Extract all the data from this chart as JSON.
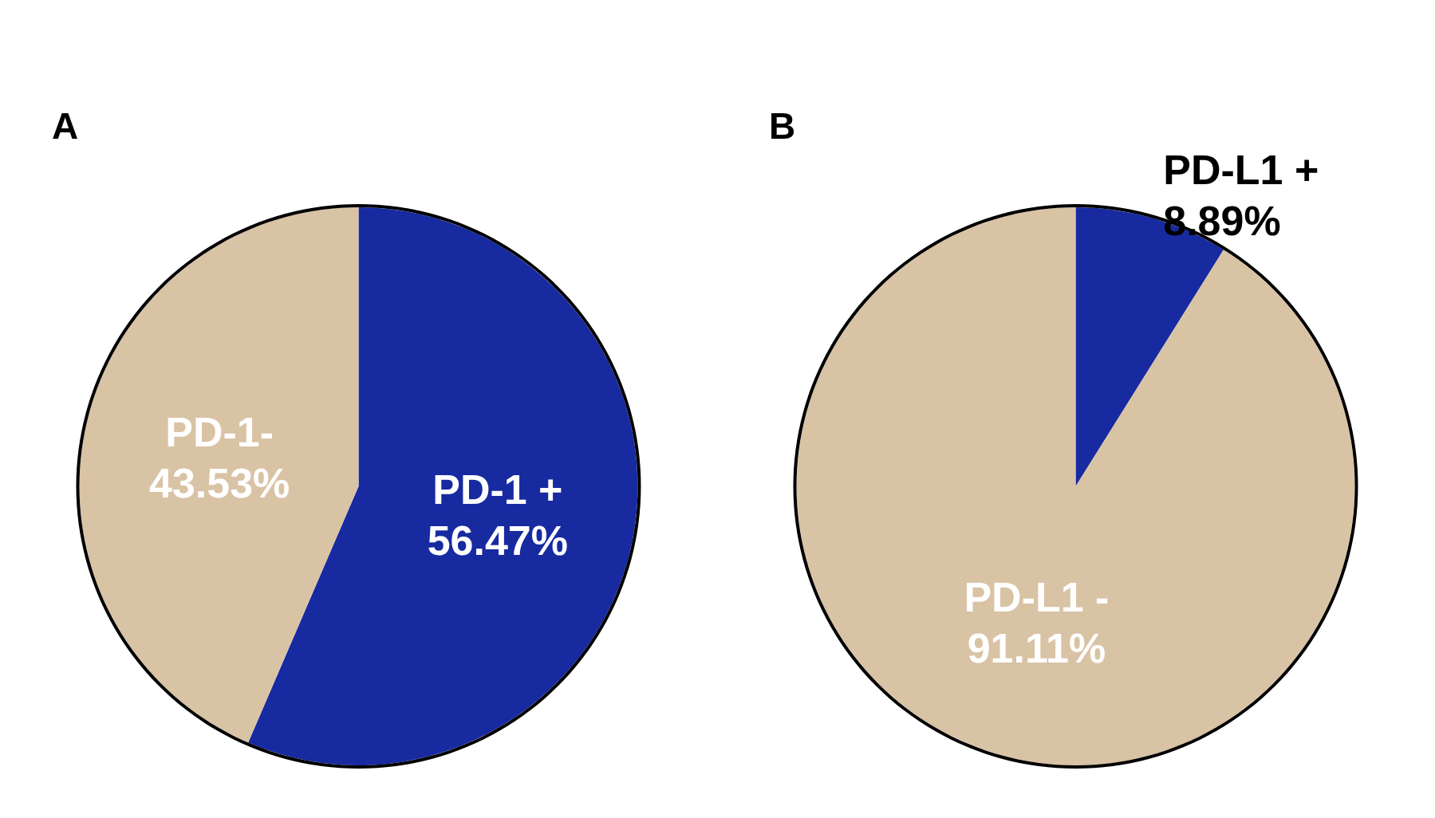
{
  "chart_data": [
    {
      "type": "pie",
      "title": "A",
      "categories": [
        "PD-1 +",
        "PD-1-"
      ],
      "values": [
        56.47,
        43.53
      ],
      "value_labels": [
        "56.47%",
        "43.53%"
      ],
      "colors": [
        "#172aa0",
        "#d9c3a5"
      ]
    },
    {
      "type": "pie",
      "title": "B",
      "categories": [
        "PD-L1 +",
        "PD-L1 -"
      ],
      "values": [
        8.89,
        91.11
      ],
      "value_labels": [
        "8.89%",
        "91.11%"
      ],
      "colors": [
        "#172aa0",
        "#d9c3a5"
      ]
    }
  ]
}
